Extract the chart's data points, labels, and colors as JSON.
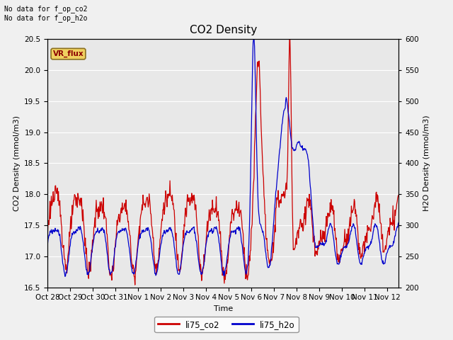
{
  "title": "CO2 Density",
  "xlabel": "Time",
  "ylabel_left": "CO2 Density (mmol/m3)",
  "ylabel_right": "H2O Density (mmol/m3)",
  "ylim_left": [
    16.5,
    20.5
  ],
  "ylim_right": [
    200,
    600
  ],
  "xlim_days": [
    0,
    15.5
  ],
  "xtick_positions": [
    0,
    1,
    2,
    3,
    4,
    5,
    6,
    7,
    8,
    9,
    10,
    11,
    12,
    13,
    14,
    15
  ],
  "xtick_labels": [
    "Oct 28",
    "Oct 29",
    "Oct 30",
    "Oct 31",
    "Nov 1",
    "Nov 2",
    "Nov 3",
    "Nov 4",
    "Nov 5",
    "Nov 6",
    "Nov 7",
    "Nov 8",
    "Nov 9",
    "Nov 10",
    "Nov 11",
    "Nov 12"
  ],
  "line_co2_color": "#cc0000",
  "line_h2o_color": "#0000cc",
  "line_width": 0.9,
  "legend_co2": "li75_co2",
  "legend_h2o": "li75_h2o",
  "bg_color": "#e8e8e8",
  "fig_bg_color": "#f0f0f0",
  "no_data_text": "No data for f_op_co2\nNo data for f_op_h2o",
  "vr_flux_label": "VR_flux",
  "title_fontsize": 11,
  "axis_fontsize": 8,
  "tick_fontsize": 7.5
}
